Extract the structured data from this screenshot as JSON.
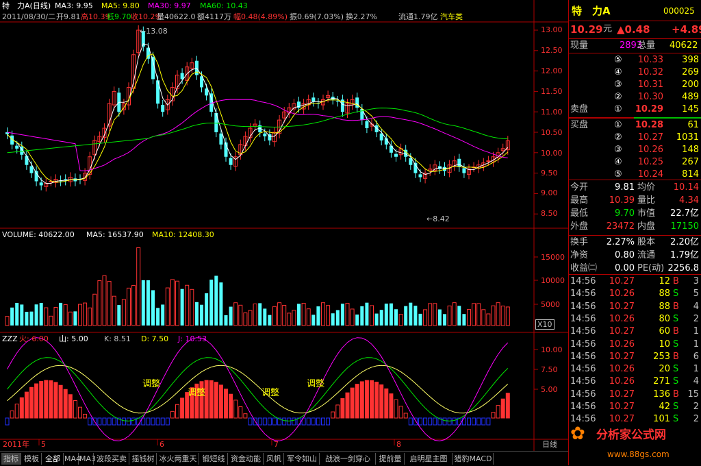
{
  "header": {
    "stock": "特　力A",
    "period": "(日线)",
    "ma3": "MA3: 9.95",
    "ma5": "MA5: 9.80",
    "ma30": "MA30: 9.97",
    "ma60": "MA60: 10.43",
    "info_date": "2011/08/30/二",
    "info_open": "开9.81",
    "info_high": "高10.39",
    "info_low": "低9.70",
    "info_close": "收10.29",
    "info_vol": "量40622.0",
    "info_amount": "额4117万",
    "info_range": "幅0.48(4.89%)",
    "info_amp": "振0.69(7.03%)",
    "info_turnover": "换2.27%",
    "info_float": "流通1.79亿",
    "info_sector": "汽车类"
  },
  "price_axis": [
    "13.00",
    "12.50",
    "12.00",
    "11.50",
    "11.00",
    "10.50",
    "10.00",
    "9.50",
    "9.00",
    "8.50"
  ],
  "annotations": {
    "high": "13.08",
    "low": "8.42"
  },
  "volume": {
    "title": "VOLUME: 40622.00",
    "ma5": "MA5: 16537.90",
    "ma10": "MA10: 12408.30",
    "axis": [
      "15000",
      "10000",
      "5000"
    ],
    "unit": "X10"
  },
  "indicator": {
    "name": "ZZZ",
    "fire": "火: 6.00",
    "mountain": "山: 5.00",
    "k": "K: 8.51",
    "d": "D: 7.50",
    "j": "J: 10.53",
    "axis": [
      "10.00",
      "7.50",
      "5.00"
    ],
    "labels": [
      "调整",
      "调整",
      "调整",
      "调整"
    ]
  },
  "time_axis": {
    "year": "2011年",
    "months": [
      "5",
      "6",
      "7",
      "8"
    ],
    "cycle": "日线"
  },
  "tabs": [
    "指标",
    "模板",
    "全部",
    "MA4",
    "MA3",
    "波段买卖",
    "摇钱树",
    "冰火两重天",
    "锻短线",
    "资金动能",
    "风帆",
    "军令如山",
    "战浪一剑穿心",
    "提前量",
    "启明星主图",
    "猎豹MACD"
  ],
  "quote": {
    "name": "特　力A",
    "code": "000025",
    "price": "10.29",
    "price_unit": "元",
    "change": "▲0.48",
    "change_pct": "+4.89",
    "cur_vol_label": "现量",
    "cur_vol": "2893",
    "total_vol_label": "总量",
    "total_vol": "40622",
    "sell_label": "卖盘",
    "buy_label": "买盘",
    "asks": [
      {
        "n": "⑤",
        "price": "10.33",
        "vol": "398"
      },
      {
        "n": "④",
        "price": "10.32",
        "vol": "269"
      },
      {
        "n": "③",
        "price": "10.31",
        "vol": "200"
      },
      {
        "n": "②",
        "price": "10.30",
        "vol": "489"
      },
      {
        "n": "①",
        "price": "10.29",
        "vol": "145"
      }
    ],
    "bids": [
      {
        "n": "①",
        "price": "10.28",
        "vol": "61"
      },
      {
        "n": "②",
        "price": "10.27",
        "vol": "1031"
      },
      {
        "n": "③",
        "price": "10.26",
        "vol": "148"
      },
      {
        "n": "④",
        "price": "10.25",
        "vol": "267"
      },
      {
        "n": "⑤",
        "price": "10.24",
        "vol": "814"
      }
    ],
    "stats": [
      {
        "l1": "今开",
        "v1": "9.81",
        "l2": "均价",
        "v2": "10.14"
      },
      {
        "l1": "最高",
        "v1": "10.39",
        "l2": "量比",
        "v2": "4.34"
      },
      {
        "l1": "最低",
        "v1": "9.70",
        "l2": "市值",
        "v2": "22.7亿"
      },
      {
        "l1": "外盘",
        "v1": "23472",
        "l2": "内盘",
        "v2": "17150"
      }
    ],
    "stats2": [
      {
        "l1": "换手",
        "v1": "2.27%",
        "l2": "股本",
        "v2": "2.20亿"
      },
      {
        "l1": "净资",
        "v1": "0.80",
        "l2": "流通",
        "v2": "1.79亿"
      },
      {
        "l1": "收益㈡",
        "v1": "0.00",
        "l2": "PE(动)",
        "v2": "2256.8"
      }
    ],
    "ticks": [
      {
        "t": "14:56",
        "p": "10.27",
        "v": "12",
        "s": "B",
        "n": "3"
      },
      {
        "t": "14:56",
        "p": "10.26",
        "v": "88",
        "s": "S",
        "n": "5"
      },
      {
        "t": "14:56",
        "p": "10.27",
        "v": "88",
        "s": "B",
        "n": "4"
      },
      {
        "t": "14:56",
        "p": "10.26",
        "v": "80",
        "s": "S",
        "n": "2"
      },
      {
        "t": "14:56",
        "p": "10.27",
        "v": "60",
        "s": "B",
        "n": "1"
      },
      {
        "t": "14:56",
        "p": "10.26",
        "v": "10",
        "s": "S",
        "n": "1"
      },
      {
        "t": "14:56",
        "p": "10.27",
        "v": "253",
        "s": "B",
        "n": "6"
      },
      {
        "t": "14:56",
        "p": "10.26",
        "v": "20",
        "s": "S",
        "n": "1"
      },
      {
        "t": "14:56",
        "p": "10.26",
        "v": "271",
        "s": "S",
        "n": "4"
      },
      {
        "t": "14:56",
        "p": "10.27",
        "v": "136",
        "s": "B",
        "n": "15"
      },
      {
        "t": "14:56",
        "p": "10.27",
        "v": "42",
        "s": "S",
        "n": "2"
      },
      {
        "t": "14:56",
        "p": "10.27",
        "v": "101",
        "s": "S",
        "n": "2"
      }
    ]
  },
  "watermark": {
    "text1": "分析家公式网",
    "text2": "www.88gs.com"
  },
  "colors": {
    "up": "#ff3232",
    "down": "#54ffff",
    "ma3": "#ffffff",
    "ma5": "#ffff00",
    "ma30": "#ff00ff",
    "ma60": "#00e600",
    "grid": "#b00000",
    "blue": "#2030ff"
  }
}
